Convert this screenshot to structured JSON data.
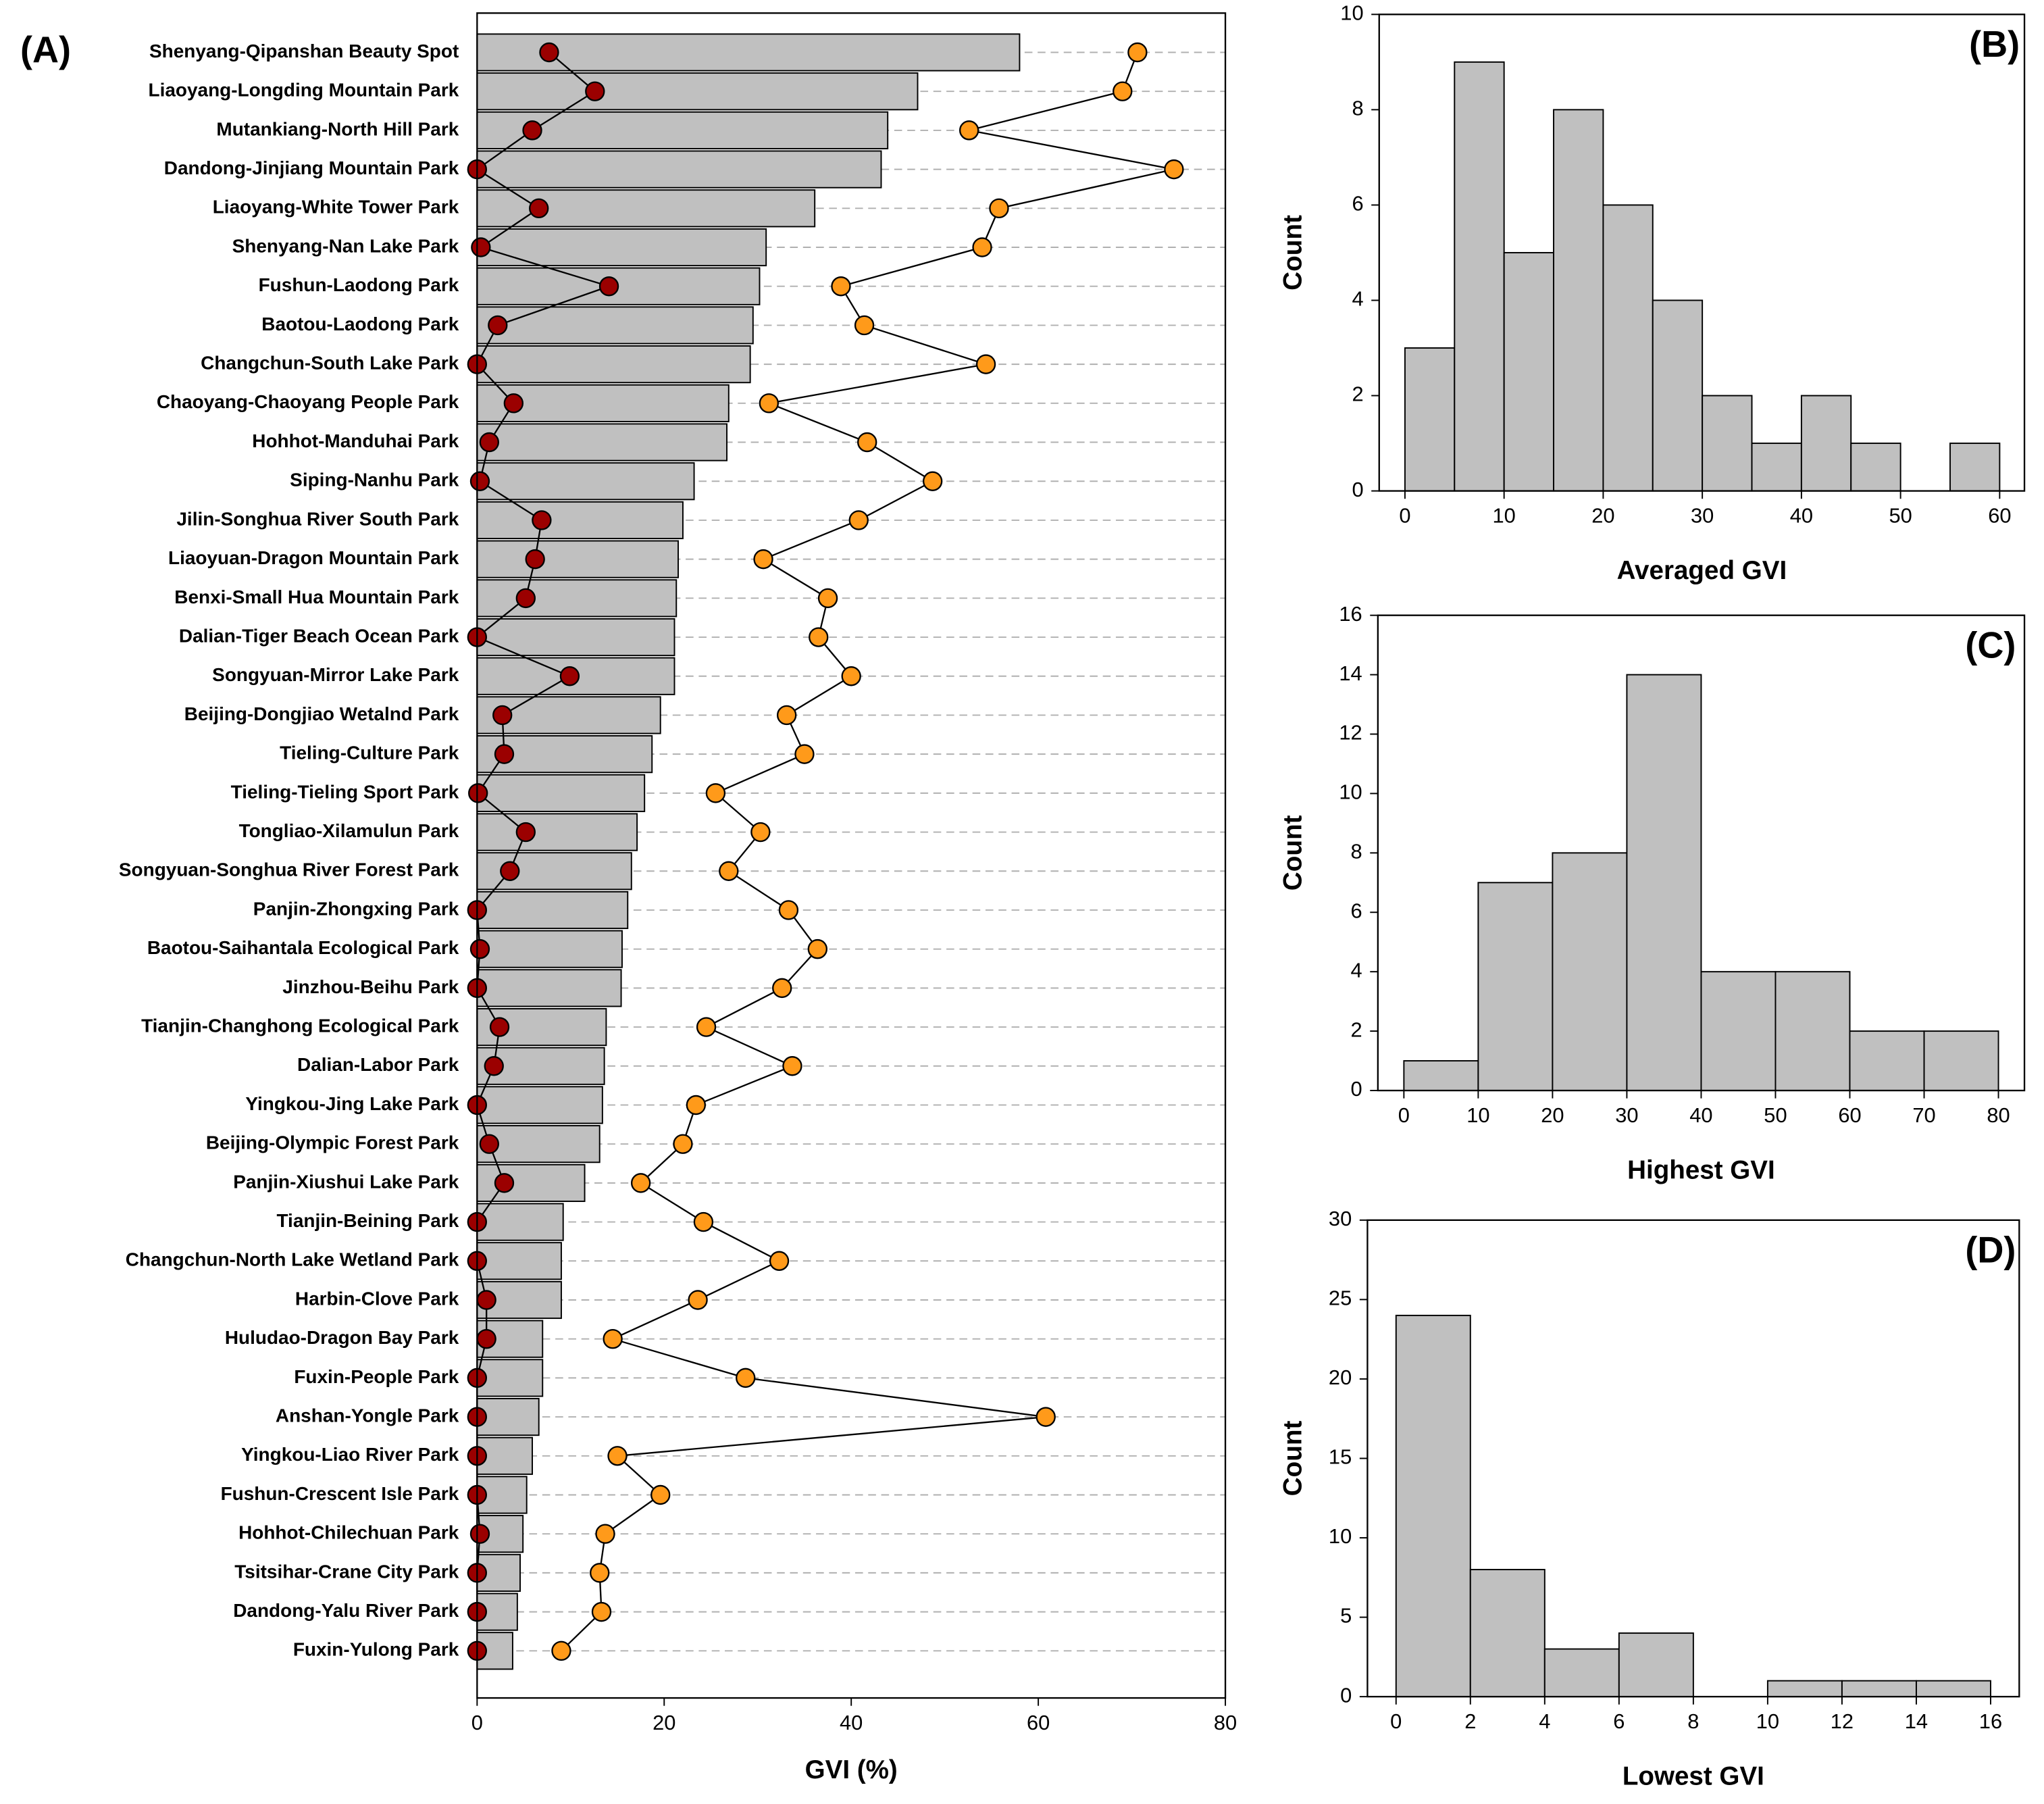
{
  "chart_data": [
    {
      "type": "bar",
      "orientation": "horizontal",
      "title": "(A)",
      "x_label": "GVI (%)",
      "categories": [
        "Shenyang-Qipanshan Beauty Spot",
        "Liaoyang-Longding Mountain Park",
        "Mutankiang-North Hill Park",
        "Dandong-Jinjiang Mountain Park",
        "Liaoyang-White Tower Park",
        "Shenyang-Nan Lake Park",
        "Fushun-Laodong Park",
        "Baotou-Laodong Park",
        "Changchun-South Lake Park",
        "Chaoyang-Chaoyang People Park",
        "Hohhot-Manduhai Park",
        "Siping-Nanhu Park",
        "Jilin-Songhua River South Park",
        "Liaoyuan-Dragon Mountain Park",
        "Benxi-Small Hua Mountain Park",
        "Dalian-Tiger Beach Ocean Park",
        "Songyuan-Mirror Lake Park",
        "Beijing-Dongjiao Wetalnd Park",
        "Tieling-Culture Park",
        "Tieling-Tieling Sport Park",
        "Tongliao-Xilamulun Park",
        "Songyuan-Songhua River Forest Park",
        "Panjin-Zhongxing Park",
        "Baotou-Saihantala Ecological Park",
        "Jinzhou-Beihu Park",
        "Tianjin-Changhong Ecological Park",
        "Dalian-Labor Park",
        "Yingkou-Jing Lake Park",
        "Beijing-Olympic Forest Park",
        "Panjin-Xiushui Lake Park",
        "Tianjin-Beining Park",
        "Changchun-North Lake Wetland Park",
        "Harbin-Clove Park",
        "Huludao-Dragon Bay Park",
        "Fuxin-People Park",
        "Anshan-Yongle Park",
        "Yingkou-Liao River Park",
        "Fushun-Crescent Isle Park",
        "Hohhot-Chilechuan Park",
        "Tsitsihar-Crane City Park",
        "Dandong-Yalu River Park",
        "Fuxin-Yulong Park"
      ],
      "series": [
        {
          "type": "bar",
          "color": "#c0c0c0",
          "values": [
            58.0,
            47.1,
            43.9,
            43.2,
            36.1,
            30.9,
            30.2,
            29.5,
            29.2,
            26.9,
            26.7,
            23.2,
            22.0,
            21.5,
            21.3,
            21.1,
            21.1,
            19.6,
            18.7,
            17.9,
            17.1,
            16.5,
            16.1,
            15.5,
            15.4,
            13.8,
            13.6,
            13.4,
            13.1,
            11.5,
            9.2,
            9.0,
            9.0,
            7.0,
            7.0,
            6.6,
            5.9,
            5.3,
            4.9,
            4.6,
            4.3,
            3.8
          ]
        },
        {
          "type": "line",
          "color": "#9b0000",
          "values": [
            7.7,
            12.6,
            5.9,
            0,
            6.6,
            0.4,
            14.1,
            2.2,
            0,
            3.9,
            1.3,
            0.3,
            6.9,
            6.2,
            5.2,
            0,
            9.9,
            2.7,
            2.9,
            0.1,
            5.2,
            3.5,
            0,
            0.3,
            0,
            2.4,
            1.8,
            0,
            1.3,
            2.9,
            0,
            0,
            1.0,
            1.0,
            0,
            0,
            0,
            0,
            0.3,
            0,
            0,
            0
          ]
        },
        {
          "type": "line",
          "color": "#ff9a1a",
          "values": [
            70.6,
            69.0,
            52.6,
            74.5,
            55.8,
            54.0,
            38.9,
            41.4,
            54.4,
            31.2,
            41.7,
            48.7,
            40.8,
            30.6,
            37.5,
            36.5,
            40.0,
            33.1,
            35.0,
            25.5,
            30.3,
            26.9,
            33.3,
            36.4,
            32.6,
            24.5,
            33.7,
            23.4,
            22.0,
            17.5,
            24.2,
            32.3,
            23.6,
            14.5,
            28.7,
            60.8,
            15.0,
            19.6,
            13.7,
            13.1,
            13.3,
            9.0
          ]
        }
      ],
      "xlim": [
        0,
        80
      ],
      "xticks": [
        0,
        20,
        40,
        60,
        80
      ],
      "grid": true
    },
    {
      "type": "histogram",
      "title": "(B)",
      "x_label": "Averaged GVI",
      "y_label": "Count",
      "color": "#c0c0c0",
      "bins": [
        0,
        5,
        10,
        15,
        20,
        25,
        30,
        35,
        40,
        45,
        50,
        55,
        60
      ],
      "values": [
        3,
        9,
        5,
        8,
        6,
        4,
        2,
        1,
        2,
        1,
        0,
        1
      ],
      "xlim": [
        -2.6,
        62.5
      ],
      "xticks": [
        0,
        10,
        20,
        30,
        40,
        50,
        60
      ],
      "ylim": [
        0,
        10
      ],
      "yticks": [
        0,
        2,
        4,
        6,
        8,
        10
      ]
    },
    {
      "type": "histogram",
      "title": "(C)",
      "x_label": "Highest GVI",
      "y_label": "Count",
      "color": "#c0c0c0",
      "bins": [
        0,
        10,
        20,
        30,
        40,
        50,
        60,
        70,
        80
      ],
      "values": [
        1,
        7,
        8,
        14,
        4,
        4,
        2,
        2
      ],
      "xlim": [
        -3.5,
        83.5
      ],
      "xticks": [
        0,
        10,
        20,
        30,
        40,
        50,
        60,
        70,
        80
      ],
      "ylim": [
        0,
        16
      ],
      "yticks": [
        0,
        2,
        4,
        6,
        8,
        10,
        12,
        14,
        16
      ]
    },
    {
      "type": "histogram",
      "title": "(D)",
      "x_label": "Lowest GVI",
      "y_label": "Count",
      "color": "#c0c0c0",
      "bins": [
        0,
        2,
        4,
        6,
        8,
        10,
        12,
        14,
        16
      ],
      "values": [
        24,
        8,
        3,
        4,
        0,
        1,
        1,
        1
      ],
      "xlim": [
        -0.77,
        16.77
      ],
      "xticks": [
        0,
        2,
        4,
        6,
        8,
        10,
        12,
        14,
        16
      ],
      "ylim": [
        0,
        30
      ],
      "yticks": [
        0,
        5,
        10,
        15,
        20,
        25,
        30
      ]
    }
  ]
}
